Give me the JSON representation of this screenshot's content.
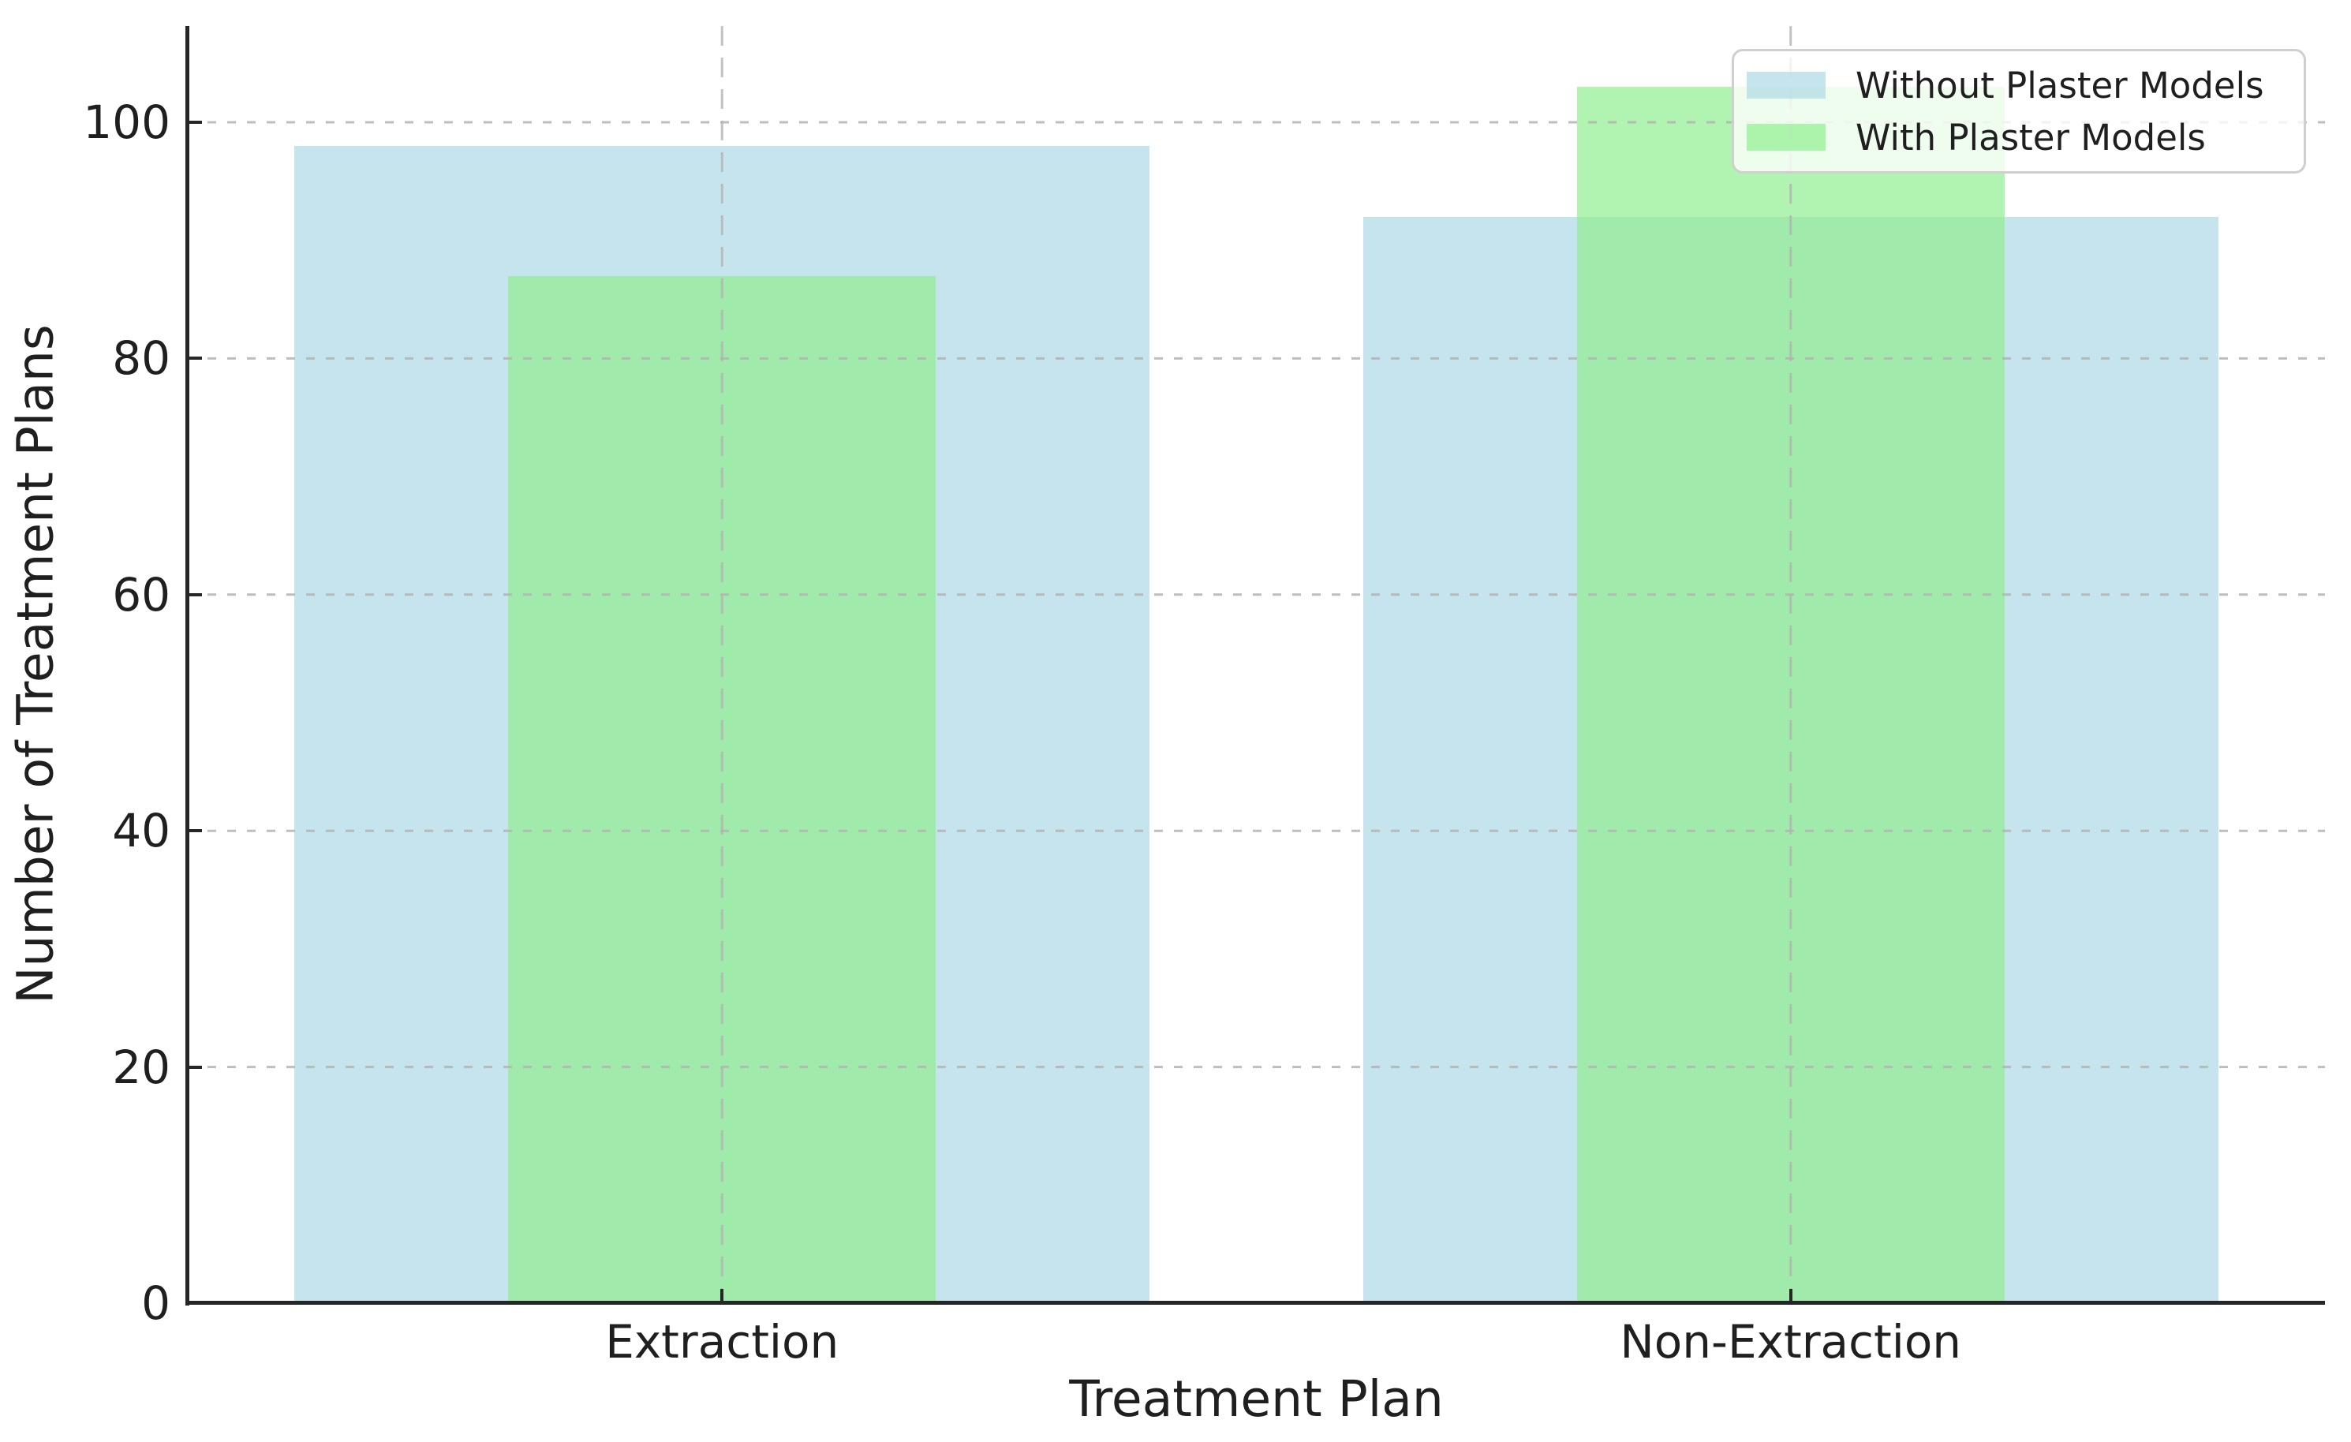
{
  "chart_data": {
    "type": "bar",
    "title": "",
    "xlabel": "Treatment Plan",
    "ylabel": "Number of Treatment Plans",
    "categories": [
      "Extraction",
      "Non-Extraction"
    ],
    "series": [
      {
        "name": "Without Plaster Models",
        "values": [
          98,
          92
        ],
        "color": "rgba(173,216,230,0.7)",
        "width_factor": 0.8
      },
      {
        "name": "With Plaster Models",
        "values": [
          87,
          103
        ],
        "color": "rgba(144,238,144,0.7)",
        "width_factor": 0.4
      }
    ],
    "yticks": [
      0,
      20,
      40,
      60,
      80,
      100
    ],
    "ylim": [
      0,
      108.15
    ],
    "grid": "dashed gray, horizontal at yticks and vertical at category centers, drawn above bars",
    "legend_position": "upper right",
    "spines": "left and bottom only, ticks pointing inward"
  },
  "colors": {
    "background": "#ffffff",
    "bar_blue": "rgba(173,216,230,0.7)",
    "bar_green": "rgba(144,238,144,0.7)",
    "grid": "#b3b3b3",
    "spine": "#262626",
    "text": "#1f1f1f",
    "legend_border": "#cfcfcf",
    "legend_bg": "rgba(255,255,255,0.8)"
  }
}
